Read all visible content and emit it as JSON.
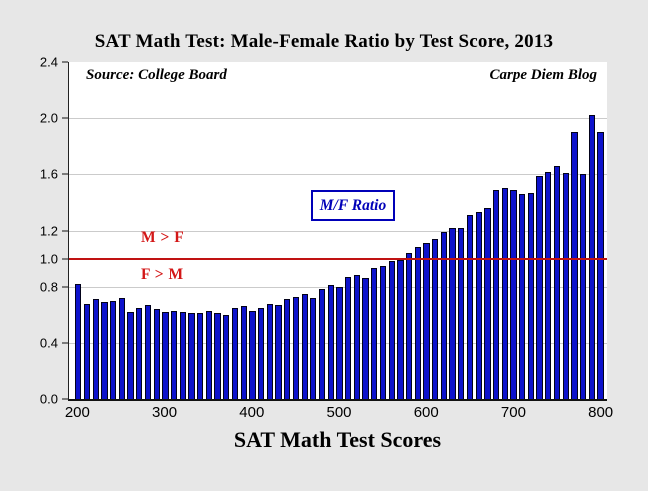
{
  "page": {
    "background": "#E7E7E7"
  },
  "header": {
    "title": "SAT Math Test: Male-Female Ratio by Test Score, 2013"
  },
  "annotations": {
    "source": "Source: College Board",
    "credit": "Carpe Diem Blog",
    "legend_label": "M/F Ratio",
    "above_line_label": "M > F",
    "below_line_label": "F > M"
  },
  "chart_data": {
    "type": "bar",
    "title": "SAT Math Test: Male-Female Ratio by Test Score, 2013",
    "xlabel": "SAT Math Test Scores",
    "ylabel": "",
    "ylim": [
      0,
      2.4
    ],
    "grid": true,
    "y_ticks": [
      0.0,
      0.4,
      0.8,
      1.0,
      1.2,
      1.6,
      2.0,
      2.4
    ],
    "gridlines": [
      0.4,
      0.8,
      1.2,
      1.6,
      2.0
    ],
    "x_tick_labels": [
      200,
      300,
      400,
      500,
      600,
      700,
      800
    ],
    "reference_line": {
      "value": 1.0,
      "color": "#C01212"
    },
    "bar_color": "#0D12CC",
    "legend": {
      "label": "M/F Ratio",
      "position": "top-center"
    },
    "categories": [
      200,
      210,
      220,
      230,
      240,
      250,
      260,
      270,
      280,
      290,
      300,
      310,
      320,
      330,
      340,
      350,
      360,
      370,
      380,
      390,
      400,
      410,
      420,
      430,
      440,
      450,
      460,
      470,
      480,
      490,
      500,
      510,
      520,
      530,
      540,
      550,
      560,
      570,
      580,
      590,
      600,
      610,
      620,
      630,
      640,
      650,
      660,
      670,
      680,
      690,
      700,
      710,
      720,
      730,
      740,
      750,
      760,
      770,
      780,
      790,
      800
    ],
    "values": [
      0.82,
      0.68,
      0.71,
      0.69,
      0.7,
      0.72,
      0.62,
      0.65,
      0.67,
      0.64,
      0.62,
      0.63,
      0.62,
      0.61,
      0.61,
      0.63,
      0.61,
      0.6,
      0.65,
      0.66,
      0.63,
      0.65,
      0.68,
      0.67,
      0.71,
      0.73,
      0.75,
      0.72,
      0.78,
      0.81,
      0.8,
      0.87,
      0.88,
      0.86,
      0.93,
      0.95,
      0.98,
      0.99,
      1.04,
      1.08,
      1.11,
      1.14,
      1.19,
      1.22,
      1.22,
      1.31,
      1.33,
      1.36,
      1.49,
      1.5,
      1.49,
      1.46,
      1.47,
      1.59,
      1.62,
      1.66,
      1.61,
      1.9,
      1.6,
      2.02,
      1.9
    ]
  }
}
